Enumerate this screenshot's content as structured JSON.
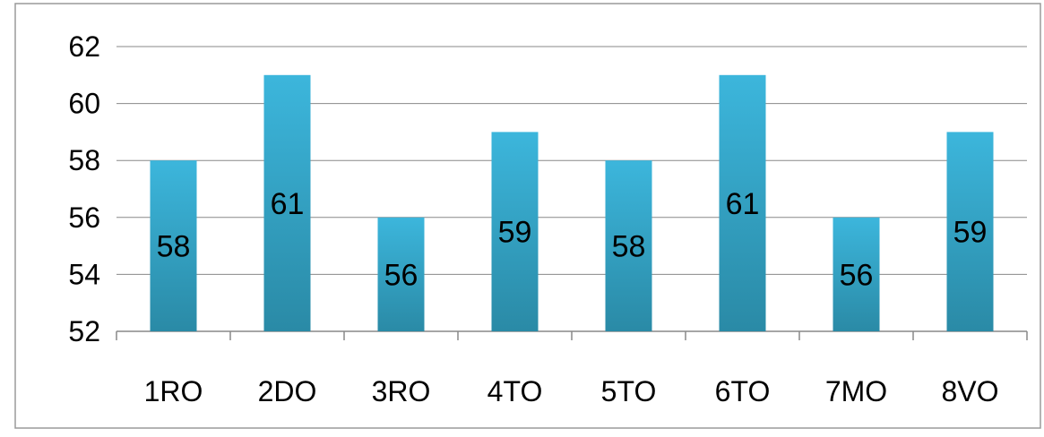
{
  "chart_data": {
    "type": "bar",
    "title": "",
    "xlabel": "",
    "ylabel": "",
    "categories": [
      "1RO",
      "2DO",
      "3RO",
      "4TO",
      "5TO",
      "6TO",
      "7MO",
      "8VO"
    ],
    "values": [
      58,
      61,
      56,
      59,
      58,
      61,
      56,
      59
    ],
    "data_labels": [
      "58",
      "61",
      "56",
      "59",
      "58",
      "61",
      "56",
      "59"
    ],
    "ylim": [
      52,
      62
    ],
    "yticks": [
      52,
      54,
      56,
      58,
      60,
      62
    ],
    "ytick_labels": [
      "52",
      "54",
      "56",
      "58",
      "60",
      "62"
    ],
    "grid": true,
    "legend": "none",
    "colors": {
      "bar_top": "#3cb6dc",
      "bar_bottom": "#2a8aa6",
      "grid": "#888888",
      "text": "#000000",
      "border": "#9a9a9a"
    }
  }
}
